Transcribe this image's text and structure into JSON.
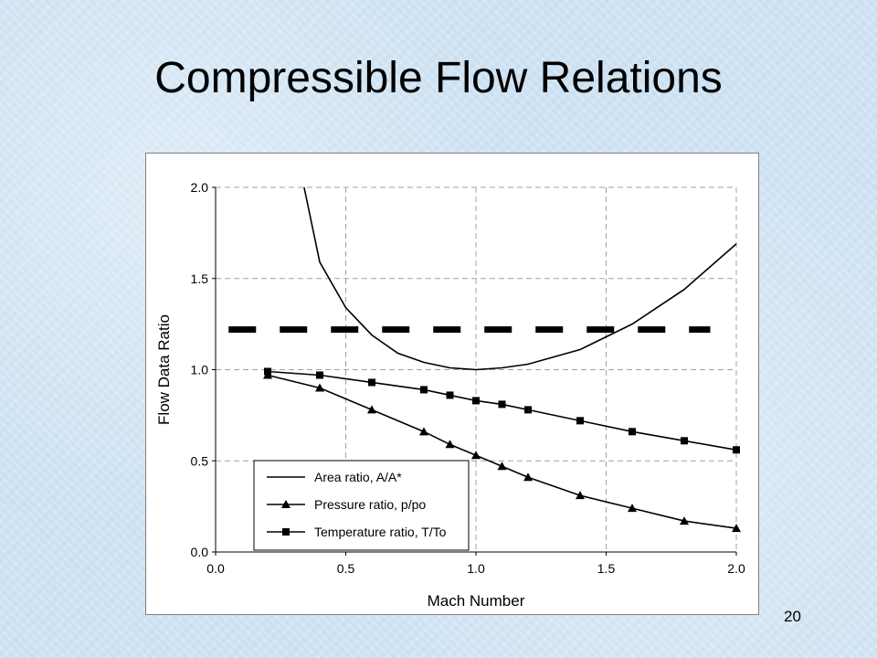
{
  "slide": {
    "title": "Compressible Flow Relations",
    "page_number": "20"
  },
  "chart_data": {
    "type": "line",
    "xlabel": "Mach Number",
    "ylabel": "Flow Data Ratio",
    "xlim": [
      0.0,
      2.0
    ],
    "ylim": [
      0.0,
      2.0
    ],
    "x_ticks": [
      "0.0",
      "0.5",
      "1.0",
      "1.5",
      "2.0"
    ],
    "y_ticks": [
      "0.0",
      "0.5",
      "1.0",
      "1.5",
      "2.0"
    ],
    "grid": "dashed horizontal and vertical gridlines",
    "legend_position": "lower-left",
    "series": [
      {
        "name": "Area ratio, A/A*",
        "marker": "none",
        "color": "#000000",
        "x": [
          0.34,
          0.4,
          0.5,
          0.6,
          0.7,
          0.8,
          0.9,
          1.0,
          1.1,
          1.2,
          1.4,
          1.6,
          1.8,
          2.0
        ],
        "y": [
          2.0,
          1.59,
          1.34,
          1.19,
          1.09,
          1.04,
          1.01,
          1.0,
          1.01,
          1.03,
          1.11,
          1.25,
          1.44,
          1.69
        ]
      },
      {
        "name": "Pressure ratio, p/po",
        "marker": "triangle",
        "color": "#000000",
        "x": [
          0.2,
          0.4,
          0.6,
          0.8,
          0.9,
          1.0,
          1.1,
          1.2,
          1.4,
          1.6,
          1.8,
          2.0
        ],
        "y": [
          0.97,
          0.9,
          0.78,
          0.66,
          0.59,
          0.53,
          0.47,
          0.41,
          0.31,
          0.24,
          0.17,
          0.13
        ]
      },
      {
        "name": "Temperature ratio, T/To",
        "marker": "square",
        "color": "#000000",
        "x": [
          0.2,
          0.4,
          0.6,
          0.8,
          0.9,
          1.0,
          1.1,
          1.2,
          1.4,
          1.6,
          1.8,
          2.0
        ],
        "y": [
          0.99,
          0.97,
          0.93,
          0.89,
          0.86,
          0.83,
          0.81,
          0.78,
          0.72,
          0.66,
          0.61,
          0.56
        ]
      }
    ],
    "reference_line": {
      "y": 1.22,
      "x_start": 0.05,
      "x_end": 1.9,
      "style": "heavy dashed"
    }
  }
}
